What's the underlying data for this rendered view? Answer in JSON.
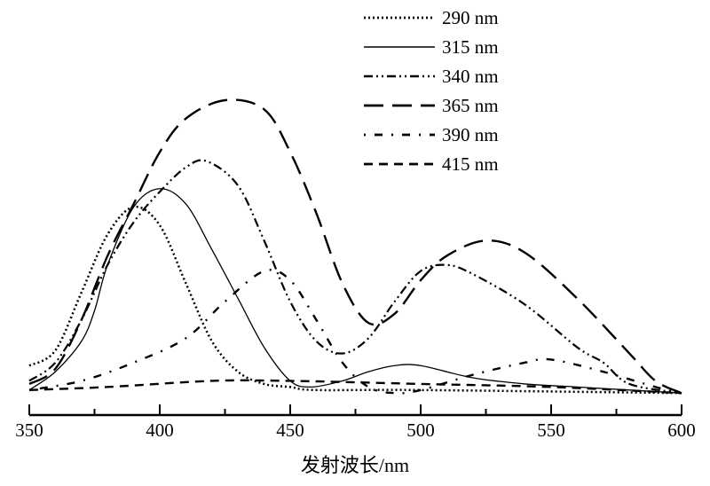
{
  "chart_data": {
    "type": "line",
    "title": "",
    "xlabel": "发射波长/nm",
    "ylabel": "",
    "xlim": [
      350,
      600
    ],
    "ylim": [
      0,
      1.0
    ],
    "xticks": [
      350,
      400,
      450,
      500,
      550,
      600
    ],
    "xtick_labels": [
      "350",
      "400",
      "450",
      "500",
      "550",
      "600"
    ],
    "grid": false,
    "legend_position": "top-right",
    "series": [
      {
        "name": "290 nm",
        "dash": "dotted",
        "x": [
          350,
          360,
          370,
          380,
          390,
          400,
          410,
          420,
          430,
          440,
          450,
          460,
          500,
          600
        ],
        "y": [
          0.13,
          0.18,
          0.37,
          0.56,
          0.65,
          0.59,
          0.4,
          0.21,
          0.11,
          0.07,
          0.06,
          0.05,
          0.05,
          0.04
        ]
      },
      {
        "name": "315 nm",
        "dash": "solid",
        "x": [
          350,
          360,
          370,
          375,
          380,
          390,
          400,
          410,
          420,
          430,
          440,
          450,
          458,
          470,
          480,
          490,
          500,
          520,
          540,
          560,
          600
        ],
        "y": [
          0.05,
          0.11,
          0.21,
          0.31,
          0.46,
          0.65,
          0.71,
          0.66,
          0.51,
          0.35,
          0.19,
          0.08,
          0.06,
          0.08,
          0.11,
          0.13,
          0.13,
          0.09,
          0.07,
          0.06,
          0.04
        ]
      },
      {
        "name": "340 nm",
        "dash": "dash-dot-dot",
        "x": [
          350,
          360,
          370,
          380,
          390,
          400,
          410,
          418,
          430,
          440,
          450,
          460,
          470,
          480,
          490,
          500,
          510,
          520,
          540,
          560,
          570,
          580,
          600
        ],
        "y": [
          0.08,
          0.14,
          0.28,
          0.46,
          0.6,
          0.7,
          0.78,
          0.8,
          0.72,
          0.54,
          0.34,
          0.21,
          0.17,
          0.22,
          0.34,
          0.44,
          0.46,
          0.43,
          0.33,
          0.19,
          0.14,
          0.07,
          0.04
        ]
      },
      {
        "name": "365 nm",
        "dash": "long-dash",
        "x": [
          350,
          360,
          370,
          380,
          390,
          400,
          410,
          425,
          440,
          450,
          460,
          470,
          480,
          490,
          500,
          510,
          525,
          540,
          560,
          580,
          590,
          600
        ],
        "y": [
          0.07,
          0.12,
          0.28,
          0.49,
          0.66,
          0.83,
          0.94,
          1.0,
          0.97,
          0.83,
          0.63,
          0.4,
          0.27,
          0.3,
          0.41,
          0.49,
          0.54,
          0.5,
          0.35,
          0.17,
          0.08,
          0.04
        ]
      },
      {
        "name": "390 nm",
        "dash": "dot-dash",
        "x": [
          350,
          370,
          390,
          410,
          425,
          440,
          450,
          460,
          470,
          480,
          490,
          500,
          520,
          540,
          550,
          570,
          590,
          600
        ],
        "y": [
          0.05,
          0.08,
          0.14,
          0.22,
          0.34,
          0.44,
          0.41,
          0.28,
          0.14,
          0.06,
          0.04,
          0.05,
          0.1,
          0.14,
          0.15,
          0.11,
          0.06,
          0.04
        ]
      },
      {
        "name": "415 nm",
        "dash": "dashed",
        "x": [
          350,
          380,
          420,
          450,
          500,
          550,
          600
        ],
        "y": [
          0.05,
          0.06,
          0.08,
          0.08,
          0.07,
          0.06,
          0.04
        ]
      }
    ]
  }
}
